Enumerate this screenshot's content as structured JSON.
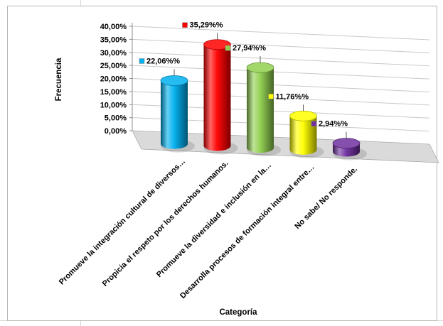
{
  "chart_data": {
    "type": "bar",
    "subtype": "3d-cylinder",
    "title": "",
    "xlabel": "Categoría",
    "ylabel": "Frecuencia",
    "ylim": [
      0,
      40
    ],
    "ytick_step": 5,
    "ytick_labels": [
      "0,00%",
      "5,00%",
      "10,00%",
      "15,00%",
      "20,00%",
      "25,00%",
      "30,00%",
      "35,00%",
      "40,00%"
    ],
    "categories": [
      "Promueve la integración cultural  de diversos…",
      "Propicia el respeto por los derechos humanos.",
      "Promueve  la diversidad e  inclusión en la…",
      "Desarrolla procesos de formación integral entre…",
      "No sabe/ No responde."
    ],
    "values": [
      22.06,
      35.29,
      27.94,
      11.76,
      2.94
    ],
    "data_labels": [
      "22,06%%",
      "35,29%%",
      "27,94%%",
      "11,76%%",
      "2,94%%"
    ],
    "bar_colors": [
      "#00B0F0",
      "#FF0000",
      "#92D050",
      "#FFFF00",
      "#7030A0"
    ],
    "grid": true,
    "legend": "none",
    "frame_border_color": "#b7b7b7",
    "background": "#ffffff"
  }
}
